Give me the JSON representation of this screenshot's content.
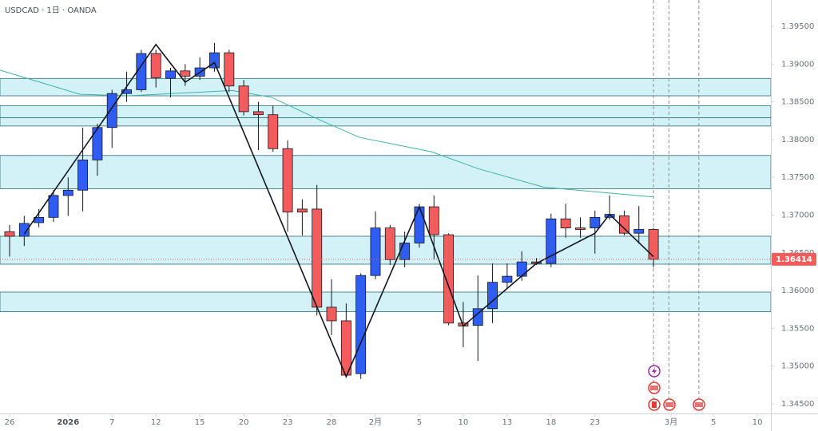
{
  "chart_data": {
    "type": "candlestick",
    "title": "USDCAD · 1日 · OANDA",
    "up_color": "#2f5df2",
    "down_color": "#f25c5c",
    "x": [
      0,
      1,
      2,
      3,
      4,
      5,
      6,
      7,
      8,
      9,
      10,
      11,
      12,
      13,
      14,
      15,
      16,
      17,
      18,
      19,
      20,
      21,
      22,
      23,
      24,
      25,
      26,
      27,
      28,
      29,
      30,
      31,
      32,
      33,
      34,
      35,
      36,
      37,
      38,
      39,
      40,
      41,
      42,
      43,
      44
    ],
    "series": [
      {
        "name": "open",
        "values": [
          1.3678,
          1.3672,
          1.369,
          1.3697,
          1.3726,
          1.3733,
          1.3773,
          1.3816,
          1.3861,
          1.3866,
          1.3914,
          1.3881,
          1.3891,
          1.3884,
          1.3895,
          1.3915,
          1.3871,
          1.3837,
          1.3833,
          1.3788,
          1.3708,
          1.3708,
          1.3578,
          1.356,
          1.349,
          1.362,
          1.3683,
          1.3641,
          1.3663,
          1.3711,
          1.3674,
          1.3557,
          1.3554,
          1.3576,
          1.3611,
          1.3619,
          1.3638,
          1.3636,
          1.3695,
          1.3683,
          1.3683,
          1.3697,
          1.3699,
          1.3676,
          1.3681
        ]
      },
      {
        "name": "high",
        "values": [
          1.3687,
          1.3699,
          1.3708,
          1.3733,
          1.375,
          1.3816,
          1.3821,
          1.3866,
          1.389,
          1.3919,
          1.3919,
          1.3895,
          1.39,
          1.3909,
          1.3928,
          1.3919,
          1.3879,
          1.385,
          1.3845,
          1.3799,
          1.3721,
          1.374,
          1.3615,
          1.3583,
          1.3623,
          1.3705,
          1.3687,
          1.3678,
          1.3715,
          1.3726,
          1.3676,
          1.3585,
          1.362,
          1.3636,
          1.3636,
          1.3652,
          1.3643,
          1.3702,
          1.3715,
          1.3697,
          1.3706,
          1.3726,
          1.3706,
          1.3712,
          1.3683
        ]
      },
      {
        "name": "low",
        "values": [
          1.3645,
          1.3659,
          1.3684,
          1.3691,
          1.3699,
          1.3705,
          1.3752,
          1.3789,
          1.385,
          1.3863,
          1.3869,
          1.3856,
          1.3871,
          1.3879,
          1.389,
          1.3863,
          1.3832,
          1.3786,
          1.3784,
          1.3678,
          1.3673,
          1.3567,
          1.3541,
          1.3488,
          1.3483,
          1.3615,
          1.3634,
          1.3631,
          1.3657,
          1.3641,
          1.3554,
          1.3525,
          1.3507,
          1.3557,
          1.3602,
          1.3613,
          1.3634,
          1.3631,
          1.367,
          1.367,
          1.3649,
          1.3694,
          1.3673,
          1.3662,
          1.3631
        ]
      },
      {
        "name": "close",
        "values": [
          1.3672,
          1.3689,
          1.3697,
          1.3726,
          1.3733,
          1.3773,
          1.3816,
          1.3861,
          1.3866,
          1.3914,
          1.3882,
          1.3891,
          1.3884,
          1.3895,
          1.3915,
          1.3871,
          1.3837,
          1.3833,
          1.3788,
          1.3704,
          1.3704,
          1.3578,
          1.356,
          1.3488,
          1.362,
          1.3683,
          1.3641,
          1.3663,
          1.3711,
          1.3674,
          1.3557,
          1.3553,
          1.3576,
          1.3611,
          1.3619,
          1.3638,
          1.3636,
          1.3695,
          1.3683,
          1.3681,
          1.3697,
          1.3701,
          1.3676,
          1.3681,
          1.36414
        ]
      }
    ],
    "last_price": 1.36414,
    "ma": {
      "color": "#3fb3a3",
      "x": [
        -0.65,
        4.8,
        8.1,
        15.2,
        17.9,
        21.2,
        23.9,
        28.8,
        32.1,
        36.5,
        44
      ],
      "values": [
        1.3892,
        1.386,
        1.3858,
        1.3865,
        1.3856,
        1.3826,
        1.3803,
        1.3784,
        1.3761,
        1.3737,
        1.3724
      ]
    },
    "zigzag": {
      "color": "#131722",
      "x": [
        1,
        10,
        12,
        14,
        23,
        28,
        31,
        36,
        40,
        41,
        44
      ],
      "values": [
        1.3675,
        1.3926,
        1.3876,
        1.3902,
        1.3486,
        1.3711,
        1.3553,
        1.3636,
        1.3676,
        1.3701,
        1.3645
      ]
    },
    "bands": [
      [
        1.3858,
        1.3881
      ],
      [
        1.3829,
        1.3845
      ],
      [
        1.3818,
        1.3829
      ],
      [
        1.3735,
        1.3779
      ],
      [
        1.3635,
        1.3672
      ],
      [
        1.3572,
        1.3598
      ]
    ],
    "band_color": "#d3f2f8",
    "event_lines": [
      44,
      45.05,
      47.1
    ],
    "xlim": [
      -0.655,
      52.02
    ],
    "ylim": [
      1.34373,
      1.39849
    ],
    "xticks": [
      {
        "value": 0,
        "label": "26"
      },
      {
        "value": 4,
        "label": "2026"
      },
      {
        "value": 7,
        "label": "7"
      },
      {
        "value": 10,
        "label": "12"
      },
      {
        "value": 13,
        "label": "15"
      },
      {
        "value": 16,
        "label": "20"
      },
      {
        "value": 19,
        "label": "23"
      },
      {
        "value": 22,
        "label": "28"
      },
      {
        "value": 25,
        "label": "2月"
      },
      {
        "value": 28,
        "label": "5"
      },
      {
        "value": 31,
        "label": "10"
      },
      {
        "value": 34,
        "label": "13"
      },
      {
        "value": 37,
        "label": "18"
      },
      {
        "value": 40,
        "label": "23"
      },
      {
        "value": 45.2,
        "label": "3月"
      },
      {
        "value": 48.1,
        "label": "5"
      },
      {
        "value": 51.1,
        "label": "10"
      }
    ],
    "yticks": [
      {
        "value": 1.395,
        "label": "1.39500"
      },
      {
        "value": 1.39,
        "label": "1.39000"
      },
      {
        "value": 1.385,
        "label": "1.38500"
      },
      {
        "value": 1.38,
        "label": "1.38000"
      },
      {
        "value": 1.375,
        "label": "1.37500"
      },
      {
        "value": 1.37,
        "label": "1.37000"
      },
      {
        "value": 1.365,
        "label": "1.36500"
      },
      {
        "value": 1.36,
        "label": "1.36000"
      },
      {
        "value": 1.355,
        "label": "1.35500"
      },
      {
        "value": 1.35,
        "label": "1.35000"
      },
      {
        "value": 1.345,
        "label": "1.34500"
      }
    ]
  }
}
